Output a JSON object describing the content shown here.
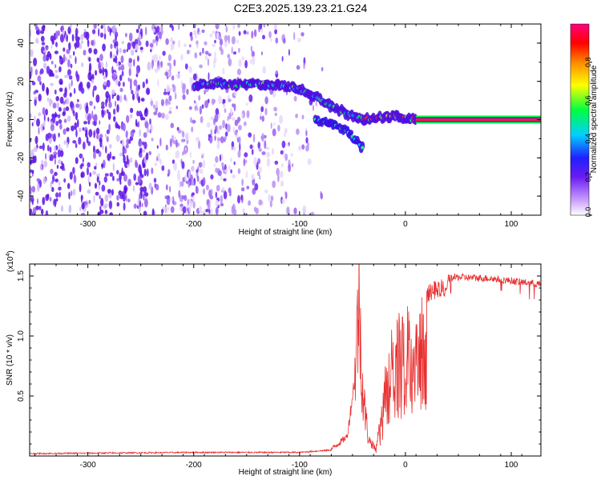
{
  "title": "C2E3.2025.139.23.21.G24",
  "chart_data": [
    {
      "type": "heatmap",
      "xlabel": "Height of straight line (km)",
      "ylabel": "Frequency (Hz)",
      "xlim": [
        -355,
        128
      ],
      "ylim": [
        -50,
        50
      ],
      "xticks": [
        -300,
        -200,
        -100,
        0,
        100
      ],
      "yticks": [
        -40,
        -20,
        0,
        20,
        40
      ],
      "colorbar": {
        "label": "Normalized spectral amplitude",
        "range": [
          0,
          1
        ],
        "ticks": [
          "0.0",
          "0.2",
          "0.4",
          "0.6",
          "0.8"
        ],
        "tick_values": [
          0,
          0.2,
          0.4,
          0.6,
          0.8
        ],
        "colors": [
          "#ffffff",
          "#b06cff",
          "#6a1cf0",
          "#2020ff",
          "#00d0ff",
          "#00ff40",
          "#ffff00",
          "#ff8800",
          "#ff0000",
          "#ff0080"
        ]
      },
      "ridge": [
        {
          "x": -200,
          "y": 18
        },
        {
          "x": -180,
          "y": 19
        },
        {
          "x": -160,
          "y": 18
        },
        {
          "x": -140,
          "y": 19
        },
        {
          "x": -120,
          "y": 18
        },
        {
          "x": -100,
          "y": 16
        },
        {
          "x": -85,
          "y": 12
        },
        {
          "x": -70,
          "y": 7
        },
        {
          "x": -55,
          "y": 3
        },
        {
          "x": -40,
          "y": 0
        },
        {
          "x": -25,
          "y": 1
        },
        {
          "x": -10,
          "y": 2
        },
        {
          "x": 0,
          "y": 1
        },
        {
          "x": 10,
          "y": 0
        }
      ],
      "lower_branch": [
        {
          "x": -85,
          "y": 0
        },
        {
          "x": -70,
          "y": -2
        },
        {
          "x": -55,
          "y": -6
        },
        {
          "x": -45,
          "y": -12
        },
        {
          "x": -40,
          "y": -15
        }
      ],
      "carrier": {
        "x_start": 10,
        "x_end": 128,
        "y": 0
      }
    },
    {
      "type": "line",
      "xlabel": "Height of straight line (km)",
      "ylabel": "SNR (10 * v/v)",
      "exponent_label": "(x10",
      "exponent_sup": "4",
      "exponent_close": ")",
      "xlim": [
        -355,
        128
      ],
      "ylim": [
        0,
        1.6
      ],
      "xticks": [
        -300,
        -200,
        -100,
        0,
        100
      ],
      "yticks": [
        0.5,
        1.0,
        1.5
      ],
      "ytick_labels": [
        "0.5",
        "1.0",
        "1.5"
      ],
      "color": "#e83030",
      "envelope": [
        {
          "x": -355,
          "y": 0.02
        },
        {
          "x": -200,
          "y": 0.03
        },
        {
          "x": -100,
          "y": 0.03
        },
        {
          "x": -70,
          "y": 0.05
        },
        {
          "x": -55,
          "y": 0.15
        },
        {
          "x": -48,
          "y": 0.6
        },
        {
          "x": -44,
          "y": 1.3
        },
        {
          "x": -40,
          "y": 0.5
        },
        {
          "x": -35,
          "y": 0.15
        },
        {
          "x": -28,
          "y": 0.05
        },
        {
          "x": -23,
          "y": 0.35
        },
        {
          "x": -18,
          "y": 0.9
        },
        {
          "x": -10,
          "y": 1.15
        },
        {
          "x": 0,
          "y": 1.25
        },
        {
          "x": 10,
          "y": 1.35
        },
        {
          "x": 20,
          "y": 1.42
        },
        {
          "x": 30,
          "y": 1.47
        },
        {
          "x": 50,
          "y": 1.49
        },
        {
          "x": 80,
          "y": 1.48
        },
        {
          "x": 100,
          "y": 1.46
        },
        {
          "x": 128,
          "y": 1.43
        }
      ]
    }
  ]
}
